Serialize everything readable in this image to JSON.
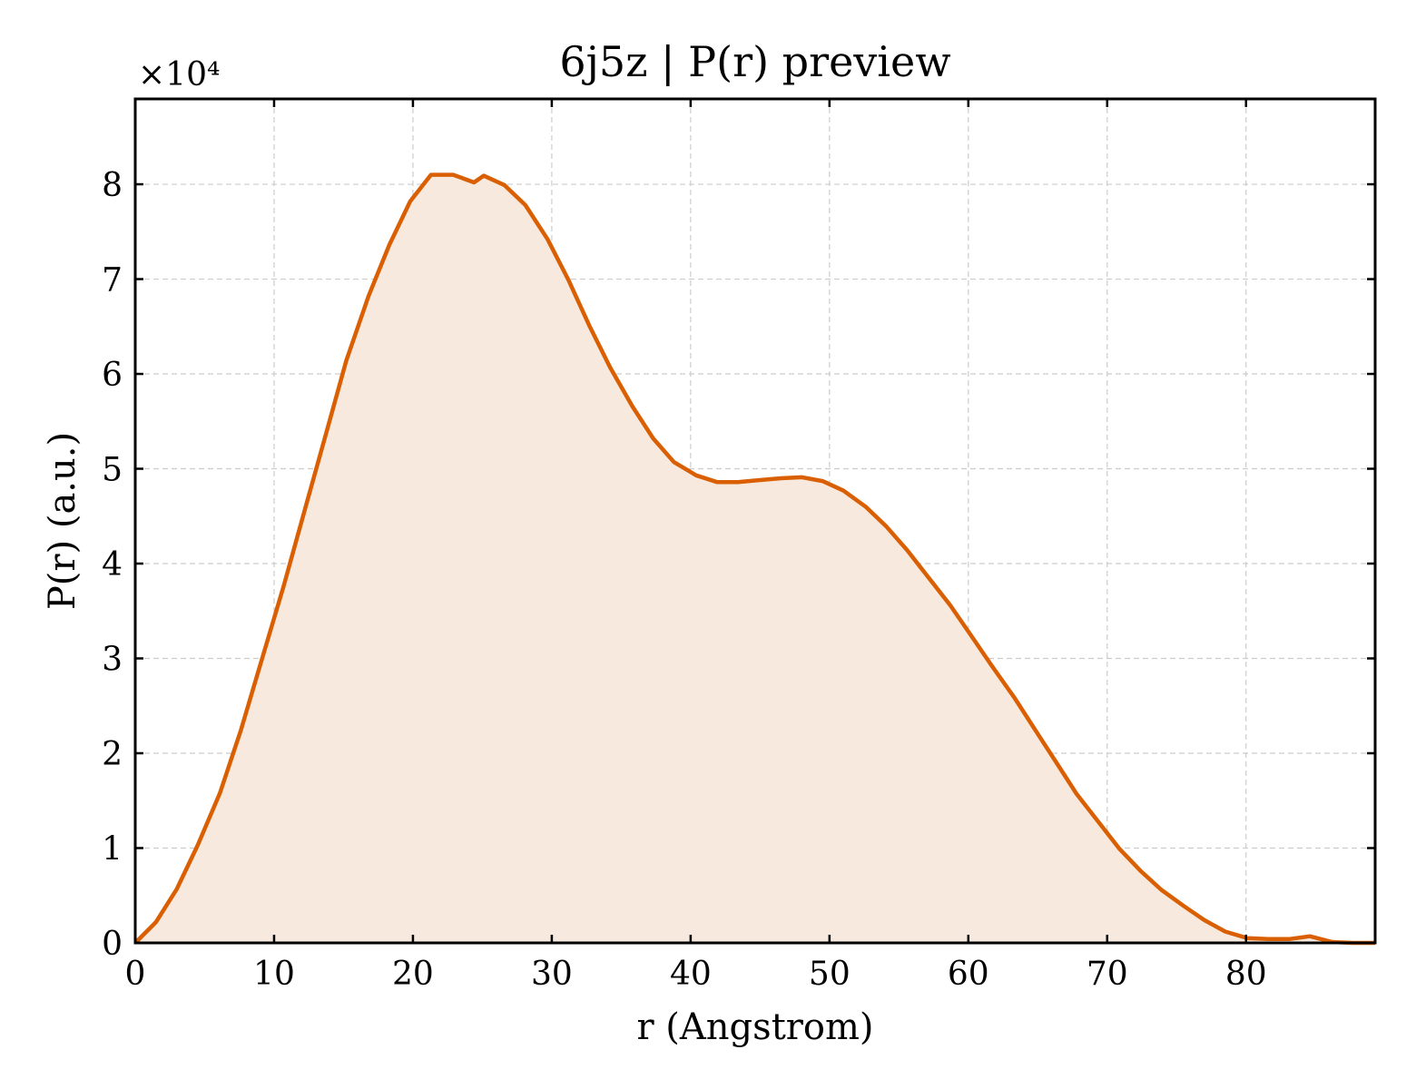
{
  "chart_data": {
    "type": "area",
    "title": "6j5z | P(r) preview",
    "xlabel": "r (Angstrom)",
    "ylabel": "P(r) (a.u.)",
    "y_multiplier": "×10⁴",
    "xlim": [
      0,
      89.3
    ],
    "ylim": [
      0,
      8.9
    ],
    "x_ticks": [
      0,
      10,
      20,
      30,
      40,
      50,
      60,
      70,
      80
    ],
    "y_ticks": [
      0,
      1,
      2,
      3,
      4,
      5,
      6,
      7,
      8
    ],
    "grid": true,
    "line_color": "#d95f02",
    "fill_color": "#f8e9de",
    "x": [
      0,
      1.5,
      3.0,
      4.5,
      6.1,
      7.6,
      9.1,
      10.7,
      12.2,
      13.7,
      15.2,
      16.8,
      18.3,
      19.8,
      21.3,
      22.9,
      24.4,
      25.1,
      26.6,
      28.1,
      29.7,
      31.2,
      32.7,
      34.2,
      35.8,
      37.3,
      38.8,
      40.4,
      41.9,
      43.4,
      44.9,
      46.5,
      48.0,
      49.5,
      51.0,
      52.6,
      54.1,
      55.6,
      57.1,
      58.7,
      60.2,
      61.7,
      63.3,
      64.8,
      66.3,
      67.8,
      69.4,
      70.9,
      72.4,
      73.9,
      75.5,
      77.0,
      78.5,
      80.1,
      81.6,
      83.1,
      84.6,
      86.2,
      87.7,
      89.3
    ],
    "y": [
      0.0,
      0.22,
      0.57,
      1.03,
      1.58,
      2.24,
      2.98,
      3.77,
      4.56,
      5.35,
      6.14,
      6.82,
      7.36,
      7.82,
      8.1,
      8.1,
      8.02,
      8.09,
      7.99,
      7.78,
      7.42,
      6.99,
      6.51,
      6.07,
      5.66,
      5.32,
      5.07,
      4.93,
      4.86,
      4.86,
      4.88,
      4.9,
      4.91,
      4.87,
      4.77,
      4.6,
      4.39,
      4.14,
      3.86,
      3.56,
      3.24,
      2.92,
      2.59,
      2.25,
      1.91,
      1.57,
      1.27,
      0.99,
      0.76,
      0.56,
      0.39,
      0.24,
      0.12,
      0.05,
      0.04,
      0.04,
      0.07,
      0.01,
      0.0,
      0.0
    ]
  }
}
